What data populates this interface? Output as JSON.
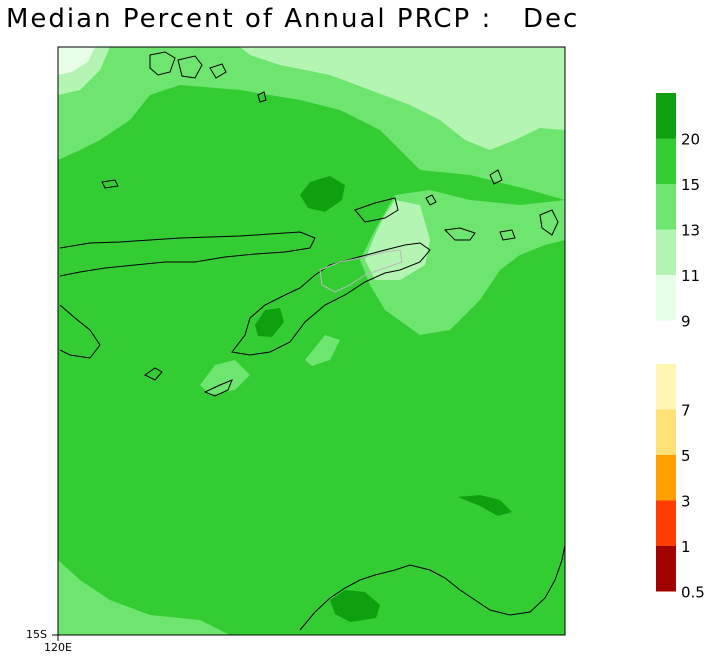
{
  "title": "Median Percent of Annual PRCP :   Dec",
  "axes": {
    "lat_label": "15S",
    "lon_label": "120E"
  },
  "legend": {
    "upper": [
      {
        "color": "#0fa00f",
        "label": "20"
      },
      {
        "color": "#33cc33",
        "label": "15"
      },
      {
        "color": "#6ee56e",
        "label": "13"
      },
      {
        "color": "#b4f5b4",
        "label": "11"
      },
      {
        "color": "#e6ffe6",
        "label": "9"
      }
    ],
    "lower": [
      {
        "color": "#fff6b4",
        "label": "7"
      },
      {
        "color": "#ffe178",
        "label": "5"
      },
      {
        "color": "#ffa000",
        "label": "3"
      },
      {
        "color": "#ff3c00",
        "label": "1"
      },
      {
        "color": "#a00000",
        "label": "0.5"
      }
    ]
  },
  "colors": {
    "base": "#33cc33",
    "coast": "#000000",
    "border": "#bbbbbb"
  }
}
